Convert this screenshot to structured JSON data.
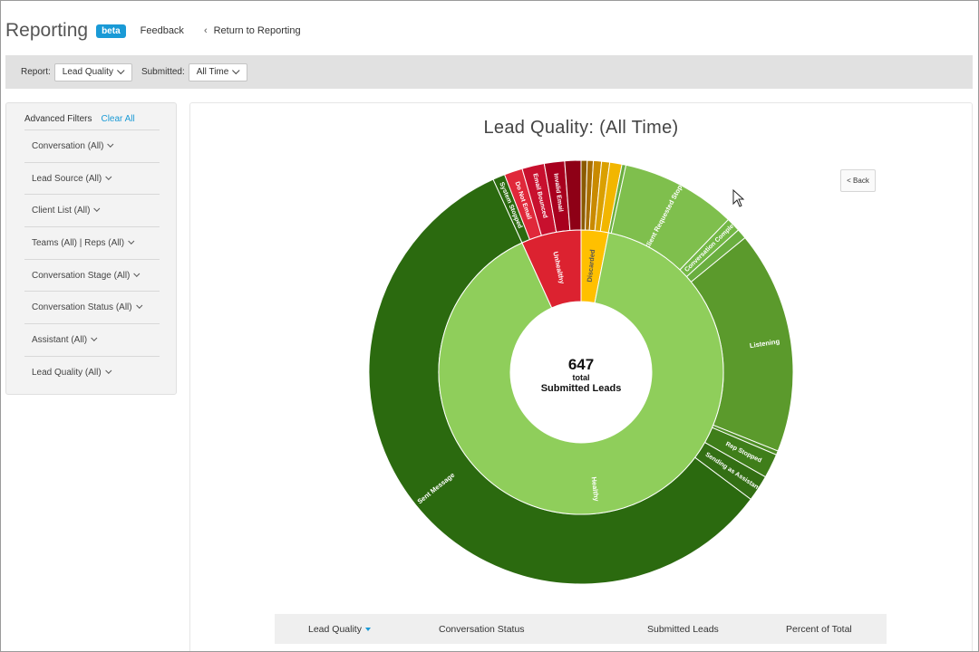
{
  "header": {
    "title": "Reporting",
    "badge": "beta",
    "feedback": "Feedback",
    "return_link": "Return to Reporting"
  },
  "toolbar": {
    "report_label": "Report:",
    "report_value": "Lead Quality",
    "submitted_label": "Submitted:",
    "submitted_value": "All Time"
  },
  "sidebar": {
    "title": "Advanced Filters",
    "clear_all": "Clear All",
    "filters": [
      "Conversation (All)",
      "Lead Source (All)",
      "Client List (All)",
      "Teams (All) | Reps (All)",
      "Conversation Stage (All)",
      "Conversation Status (All)",
      "Assistant (All)",
      "Lead Quality (All)"
    ]
  },
  "chart": {
    "title": "Lead Quality: (All Time)",
    "back_button": "< Back",
    "center_value": "647",
    "center_label1": "total",
    "center_label2": "Submitted Leads"
  },
  "chart_data": {
    "type": "sunburst",
    "title": "Lead Quality: (All Time)",
    "total": 647,
    "inner": [
      {
        "name": "Discarded",
        "value": 20,
        "color": "#ffc000"
      },
      {
        "name": "Healthy",
        "value": 583,
        "color": "#8fce5b"
      },
      {
        "name": "Unhealthy",
        "value": 44,
        "color": "#dc2230"
      }
    ],
    "outer": [
      {
        "parent": "Discarded",
        "name": "",
        "value": 3,
        "color": "#8a5a00"
      },
      {
        "parent": "Discarded",
        "name": "",
        "value": 3,
        "color": "#a86d00"
      },
      {
        "parent": "Discarded",
        "name": "",
        "value": 4,
        "color": "#c98a00"
      },
      {
        "parent": "Discarded",
        "name": "",
        "value": 4,
        "color": "#daa000"
      },
      {
        "parent": "Discarded",
        "name": "",
        "value": 6,
        "color": "#f2b600"
      },
      {
        "parent": "Healthy",
        "name": "",
        "value": 2,
        "color": "#6aae3f"
      },
      {
        "parent": "Healthy",
        "name": "Client Requested Stopped",
        "value": 57,
        "color": "#7fbf4d"
      },
      {
        "parent": "Healthy",
        "name": "Conversation Complete",
        "value": 7,
        "color": "#73b845"
      },
      {
        "parent": "Healthy",
        "name": "Lead Requested Stop",
        "value": 5,
        "color": "#6aae3f"
      },
      {
        "parent": "Healthy",
        "name": "Listening",
        "value": 110,
        "color": "#5b9a2c"
      },
      {
        "parent": "Healthy",
        "name": "",
        "value": 2,
        "color": "#4f8f26"
      },
      {
        "parent": "Healthy",
        "name": "Rep Stopped",
        "value": 12,
        "color": "#3f7e1a"
      },
      {
        "parent": "Healthy",
        "name": "Sending as Assistant",
        "value": 13,
        "color": "#336f14"
      },
      {
        "parent": "Healthy",
        "name": "Sent Message",
        "value": 375,
        "color": "#2b6a0f"
      },
      {
        "parent": "Unhealthy",
        "name": "System Stopped",
        "value": 6,
        "color": "#2b6a0f"
      },
      {
        "parent": "Unhealthy",
        "name": "Do Not Email",
        "value": 9,
        "color": "#e0283a"
      },
      {
        "parent": "Unhealthy",
        "name": "Email Bounced",
        "value": 11,
        "color": "#c8102e"
      },
      {
        "parent": "Unhealthy",
        "name": "Invalid Email",
        "value": 10,
        "color": "#a8001e"
      },
      {
        "parent": "Unhealthy",
        "name": "",
        "value": 8,
        "color": "#8e0016"
      }
    ]
  },
  "table": {
    "columns": [
      "Lead Quality",
      "Conversation Status",
      "Submitted Leads",
      "Percent of Total"
    ]
  },
  "colors": {
    "accent": "#1a9ad6",
    "toolbar_bg": "#e1e1e1"
  }
}
